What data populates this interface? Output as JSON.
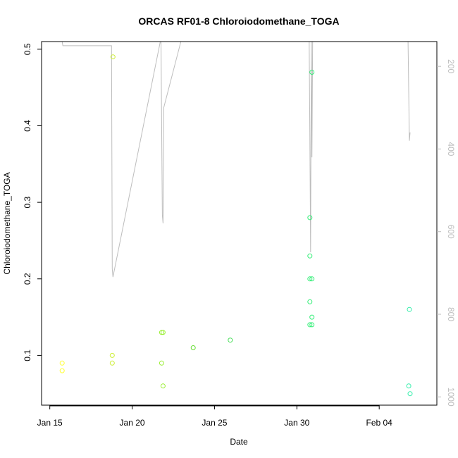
{
  "chart_data": {
    "type": "scatter",
    "title": "ORCAS RF01-8 Chloroiodomethane_TOGA",
    "xlabel": "Date",
    "ylabel": "Chloroiodomethane_TOGA",
    "x_ticks": [
      "Jan 15",
      "Jan 20",
      "Jan 25",
      "Jan 30",
      "Feb 04"
    ],
    "x_tick_values": [
      "2016-01-15",
      "2016-01-20",
      "2016-01-25",
      "2016-01-30",
      "2016-02-04"
    ],
    "x_range": [
      "2015-01-14T12:00",
      "2016-02-07T12:00"
    ],
    "y_ticks": [
      0.1,
      0.2,
      0.3,
      0.4,
      0.5
    ],
    "ylim": [
      0.035,
      0.51
    ],
    "y2_ticks": [
      200,
      400,
      600,
      800,
      1000
    ],
    "y2lim": [
      1020,
      140
    ],
    "y2_line_color": "#bdbdbd",
    "series": [
      {
        "color": "#ffff33",
        "points": [
          {
            "x": "2016-01-15T18:00",
            "y": 0.09
          },
          {
            "x": "2016-01-15T18:00",
            "y": 0.08
          }
        ]
      },
      {
        "color": "#ccee33",
        "points": [
          {
            "x": "2016-01-18T20:00",
            "y": 0.49
          },
          {
            "x": "2016-01-18T19:00",
            "y": 0.1
          },
          {
            "x": "2016-01-18T19:00",
            "y": 0.09
          }
        ]
      },
      {
        "color": "#99ee33",
        "points": [
          {
            "x": "2016-01-21T19:00",
            "y": 0.13
          },
          {
            "x": "2016-01-21T21:00",
            "y": 0.13
          },
          {
            "x": "2016-01-21T19:00",
            "y": 0.09
          },
          {
            "x": "2016-01-21T21:00",
            "y": 0.06
          }
        ]
      },
      {
        "color": "#66dd33",
        "points": [
          {
            "x": "2016-01-23T17:00",
            "y": 0.11
          }
        ]
      },
      {
        "color": "#44dd55",
        "points": [
          {
            "x": "2016-01-25T23:00",
            "y": 0.12
          }
        ]
      },
      {
        "color": "#33ee77",
        "points": [
          {
            "x": "2016-01-30T19:00",
            "y": 0.28
          },
          {
            "x": "2016-01-30T19:00",
            "y": 0.23
          },
          {
            "x": "2016-01-30T19:00",
            "y": 0.2
          },
          {
            "x": "2016-01-30T19:00",
            "y": 0.17
          },
          {
            "x": "2016-01-30T19:00",
            "y": 0.14
          },
          {
            "x": "2016-01-30T22:00",
            "y": 0.47
          },
          {
            "x": "2016-01-30T22:00",
            "y": 0.2
          },
          {
            "x": "2016-01-30T22:00",
            "y": 0.15
          },
          {
            "x": "2016-01-30T22:00",
            "y": 0.14
          }
        ]
      },
      {
        "color": "#33eeaa",
        "points": [
          {
            "x": "2016-02-05T20:00",
            "y": 0.16
          },
          {
            "x": "2016-02-05T19:00",
            "y": 0.06
          },
          {
            "x": "2016-02-05T21:00",
            "y": 0.05
          }
        ]
      }
    ],
    "pressure_trace": [
      {
        "segment": [
          {
            "x": "2016-01-15T18:00",
            "y2": 140
          },
          {
            "x": "2016-01-15T19:00",
            "y2": 150
          },
          {
            "x": "2016-01-18T18:00",
            "y2": 150
          },
          {
            "x": "2016-01-18T19:00",
            "y2": 690
          },
          {
            "x": "2016-01-18T20:00",
            "y2": 710
          },
          {
            "x": "2016-01-21T17:00",
            "y2": 140
          },
          {
            "x": "2016-01-21T18:00",
            "y2": 140
          },
          {
            "x": "2016-01-21T20:00",
            "y2": 560
          },
          {
            "x": "2016-01-21T21:00",
            "y2": 580
          },
          {
            "x": "2016-01-21T22:00",
            "y2": 300
          },
          {
            "x": "2016-01-22T23:00",
            "y2": 140
          }
        ]
      },
      {
        "segment": [
          {
            "x": "2016-01-30T18:00",
            "y2": 140
          },
          {
            "x": "2016-01-30T19:00",
            "y2": 380
          },
          {
            "x": "2016-01-30T20:00",
            "y2": 650
          },
          {
            "x": "2016-01-30T21:00",
            "y2": 140
          },
          {
            "x": "2016-01-30T22:00",
            "y2": 420
          },
          {
            "x": "2016-01-30T23:00",
            "y2": 140
          }
        ]
      },
      {
        "segment": [
          {
            "x": "2016-02-05T18:00",
            "y2": 140
          },
          {
            "x": "2016-02-05T20:00",
            "y2": 380
          },
          {
            "x": "2016-02-05T21:00",
            "y2": 360
          }
        ]
      }
    ]
  }
}
